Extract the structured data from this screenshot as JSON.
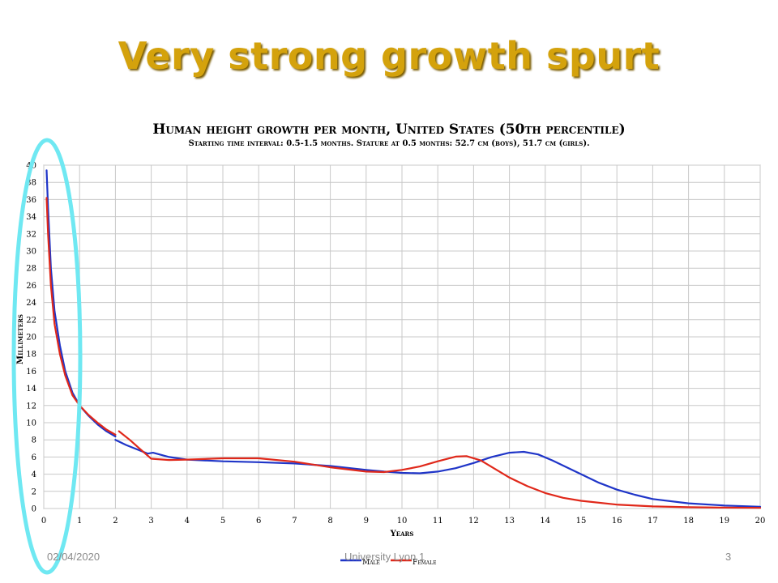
{
  "slide": {
    "title": "Very strong growth spurt",
    "footer_date": "02/04/2020",
    "footer_center": "University Lyon 1",
    "page_number": "3"
  },
  "colors": {
    "title": "#d4a20c",
    "male": "#1f35c8",
    "female": "#e0281a",
    "highlight": "#6fe8f2",
    "grid": "#c8c8c8"
  },
  "chart_data": {
    "type": "line",
    "title": "Human height growth per month, United States (50th percentile)",
    "subtitle": "Starting time interval: 0.5-1.5 months. Stature at 0.5 months: 52.7 cm (boys), 51.7 cm (girls).",
    "xlabel": "Years",
    "ylabel": "Millimeters",
    "xlim": [
      0,
      20
    ],
    "ylim": [
      0,
      40
    ],
    "xticks": [
      0,
      1,
      2,
      3,
      4,
      5,
      6,
      7,
      8,
      9,
      10,
      11,
      12,
      13,
      14,
      15,
      16,
      17,
      18,
      19,
      20
    ],
    "yticks": [
      0,
      2,
      4,
      6,
      8,
      10,
      12,
      14,
      16,
      18,
      20,
      22,
      24,
      26,
      28,
      30,
      32,
      34,
      36,
      38,
      40
    ],
    "grid": true,
    "legend": "bottom",
    "series": [
      {
        "name": "Male",
        "color": "#1f35c8",
        "segments": [
          [
            [
              0.08,
              39.4
            ],
            [
              0.12,
              35
            ],
            [
              0.2,
              28
            ],
            [
              0.3,
              23
            ],
            [
              0.45,
              19
            ],
            [
              0.6,
              16
            ],
            [
              0.8,
              13.5
            ],
            [
              1.0,
              12
            ],
            [
              1.25,
              10.8
            ],
            [
              1.5,
              9.8
            ],
            [
              1.75,
              9
            ],
            [
              2.0,
              8.4
            ]
          ],
          [
            [
              2.0,
              8.0
            ],
            [
              2.3,
              7.4
            ],
            [
              2.6,
              6.9
            ],
            [
              2.9,
              6.4
            ],
            [
              3.05,
              6.5
            ],
            [
              3.5,
              6.0
            ],
            [
              4,
              5.7
            ],
            [
              5,
              5.5
            ],
            [
              6,
              5.4
            ],
            [
              7,
              5.25
            ],
            [
              8,
              4.95
            ],
            [
              9,
              4.5
            ],
            [
              9.5,
              4.3
            ],
            [
              10,
              4.15
            ],
            [
              10.5,
              4.1
            ],
            [
              11,
              4.3
            ],
            [
              11.5,
              4.7
            ],
            [
              12,
              5.3
            ],
            [
              12.5,
              6.0
            ],
            [
              13,
              6.5
            ],
            [
              13.4,
              6.6
            ],
            [
              13.8,
              6.3
            ],
            [
              14.2,
              5.6
            ],
            [
              14.6,
              4.8
            ],
            [
              15,
              4.0
            ],
            [
              15.5,
              3.0
            ],
            [
              16,
              2.2
            ],
            [
              16.5,
              1.6
            ],
            [
              17,
              1.1
            ],
            [
              18,
              0.6
            ],
            [
              19,
              0.35
            ],
            [
              20,
              0.2
            ]
          ]
        ]
      },
      {
        "name": "Female",
        "color": "#e0281a",
        "segments": [
          [
            [
              0.08,
              36.2
            ],
            [
              0.12,
              32
            ],
            [
              0.2,
              26
            ],
            [
              0.3,
              21.5
            ],
            [
              0.45,
              18
            ],
            [
              0.6,
              15.5
            ],
            [
              0.8,
              13.2
            ],
            [
              1.0,
              12
            ],
            [
              1.25,
              10.9
            ],
            [
              1.5,
              10.0
            ],
            [
              1.75,
              9.2
            ],
            [
              2.0,
              8.6
            ]
          ],
          [
            [
              2.1,
              9.0
            ],
            [
              2.4,
              8.0
            ],
            [
              2.7,
              6.9
            ],
            [
              3.0,
              5.8
            ],
            [
              3.5,
              5.65
            ],
            [
              4,
              5.7
            ],
            [
              5,
              5.85
            ],
            [
              6,
              5.85
            ],
            [
              7,
              5.45
            ],
            [
              8,
              4.8
            ],
            [
              9,
              4.3
            ],
            [
              9.5,
              4.25
            ],
            [
              10,
              4.5
            ],
            [
              10.5,
              4.9
            ],
            [
              11,
              5.5
            ],
            [
              11.5,
              6.05
            ],
            [
              11.8,
              6.1
            ],
            [
              12.2,
              5.6
            ],
            [
              12.6,
              4.6
            ],
            [
              13,
              3.6
            ],
            [
              13.5,
              2.6
            ],
            [
              14,
              1.8
            ],
            [
              14.5,
              1.25
            ],
            [
              15,
              0.9
            ],
            [
              16,
              0.45
            ],
            [
              17,
              0.25
            ],
            [
              18,
              0.15
            ],
            [
              19,
              0.1
            ],
            [
              20,
              0.08
            ]
          ]
        ]
      }
    ]
  }
}
